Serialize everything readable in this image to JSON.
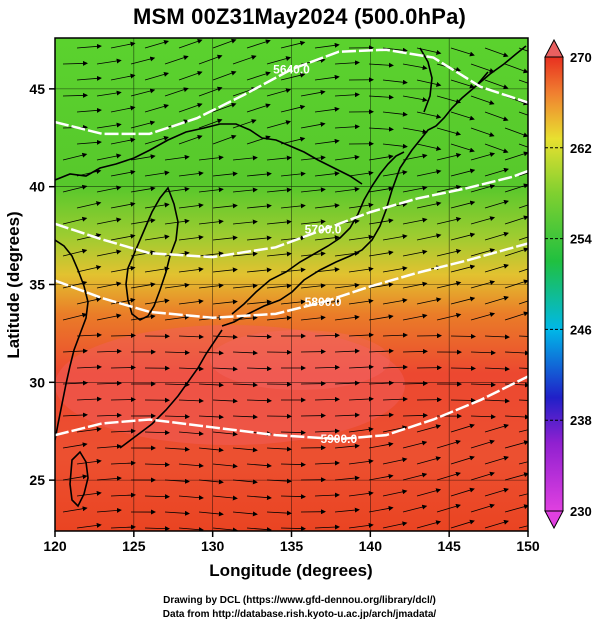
{
  "title": "MSM 00Z31May2024 (500.0hPa)",
  "credits": {
    "line1": "Drawing by DCL (https://www.gfd-dennou.org/library/dcl/)",
    "line2": "Data from http://database.rish.kyoto-u.ac.jp/arch/jmadata/"
  },
  "chart_data": {
    "type": "heatmap",
    "title": "MSM 00Z31May2024 (500.0hPa)",
    "xlabel": "Longitude (degrees)",
    "ylabel": "Latitude  (degrees)",
    "xlim": [
      120,
      150
    ],
    "ylim": [
      22.4,
      47.6
    ],
    "x_ticks": [
      120,
      125,
      130,
      135,
      140,
      145,
      150
    ],
    "y_ticks": [
      25,
      30,
      35,
      40,
      45
    ],
    "grid": true,
    "colorbar": {
      "range": [
        230,
        270
      ],
      "ticks": [
        230,
        238,
        246,
        254,
        262,
        270
      ],
      "colors": [
        "#e040e0",
        "#3030d0",
        "#00c8e0",
        "#30c030",
        "#e8e030",
        "#e83020"
      ]
    },
    "height_contours": [
      {
        "label": "5700.0",
        "points": [
          [
            120,
            38.1
          ],
          [
            123,
            37.3
          ],
          [
            126,
            36.6
          ],
          [
            130,
            36.4
          ],
          [
            134,
            36.9
          ],
          [
            137,
            37.8
          ],
          [
            140,
            38.7
          ],
          [
            143,
            39.4
          ],
          [
            146,
            39.9
          ],
          [
            149,
            40.5
          ],
          [
            150,
            40.8
          ]
        ]
      },
      {
        "label": "5800.0",
        "points": [
          [
            120,
            35.2
          ],
          [
            123,
            34.3
          ],
          [
            126,
            33.6
          ],
          [
            130,
            33.3
          ],
          [
            134,
            33.5
          ],
          [
            137,
            34.1
          ],
          [
            140,
            34.9
          ],
          [
            143,
            35.6
          ],
          [
            146,
            36.2
          ],
          [
            150,
            37.1
          ]
        ]
      },
      {
        "label": "5900.0",
        "points": [
          [
            120,
            27.3
          ],
          [
            123,
            27.9
          ],
          [
            126,
            28.1
          ],
          [
            130,
            27.7
          ],
          [
            134,
            27.3
          ],
          [
            138,
            27.1
          ],
          [
            141,
            27.3
          ],
          [
            144,
            28.1
          ],
          [
            147,
            29.1
          ],
          [
            150,
            30.3
          ]
        ]
      },
      {
        "label": "5640.0",
        "points": [
          [
            120,
            43.3
          ],
          [
            123,
            42.7
          ],
          [
            126,
            42.7
          ],
          [
            129,
            43.5
          ],
          [
            132,
            44.7
          ],
          [
            135,
            46.0
          ],
          [
            138,
            46.9
          ],
          [
            141,
            47.0
          ],
          [
            144,
            46.6
          ],
          [
            147,
            45.1
          ],
          [
            150,
            44.3
          ]
        ]
      }
    ]
  }
}
